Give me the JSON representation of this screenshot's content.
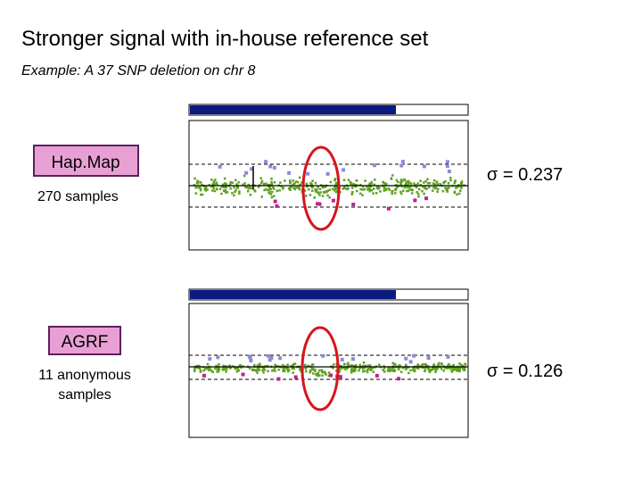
{
  "header": {
    "title": "Stronger signal with in-house reference set",
    "subtitle": "Example: A 37 SNP deletion on chr 8"
  },
  "panels": [
    {
      "label": "Hap.Map",
      "caption": "270 samples",
      "sigma": "σ = 0.237"
    },
    {
      "label": "AGRF",
      "caption": [
        "11 anonymous",
        "samples"
      ],
      "sigma": "σ = 0.126"
    }
  ]
}
